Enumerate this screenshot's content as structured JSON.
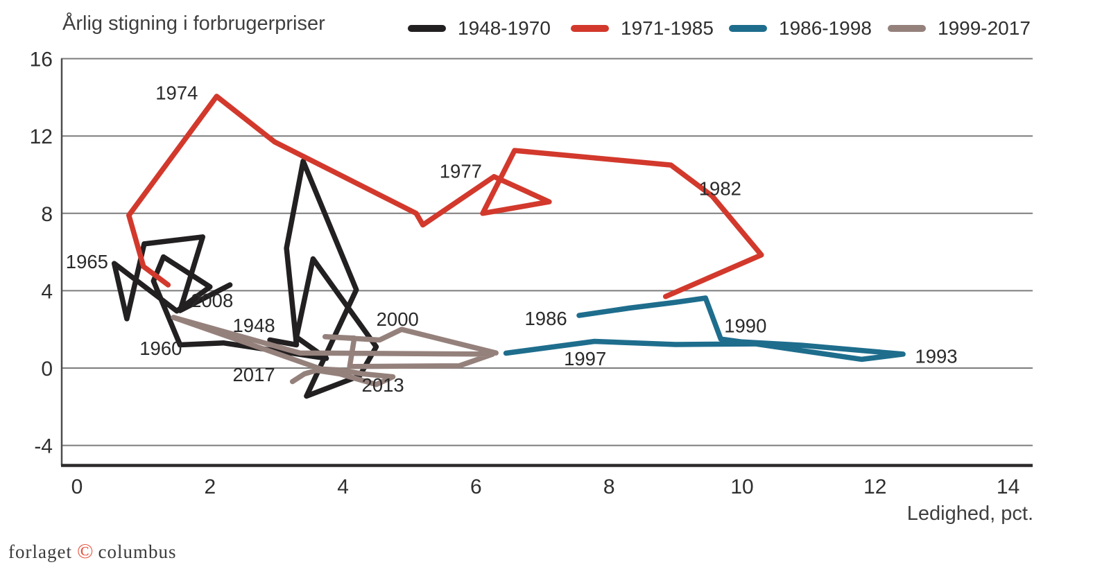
{
  "title": "Årlig stigning i forbrugerpriser",
  "footer": {
    "publisher": "forlaget",
    "copyright": "©",
    "name": "columbus"
  },
  "colors": {
    "grid": "#7c7c7c",
    "axis": "#2d2a2b",
    "left_axis": "#4c4c4c",
    "tick_text": "#2f2f2f",
    "annotation_text": "#2a2a2a",
    "series_black": "#232021",
    "series_red": "#d2392c",
    "series_teal": "#1e6d8d",
    "series_gray": "#95817c",
    "footer_accent": "#e8503c"
  },
  "chart_data": {
    "type": "line",
    "title": "Årlig stigning i forbrugerpriser",
    "xlabel": "Ledighed, pct.",
    "ylabel": "",
    "xlim": [
      0,
      15.3
    ],
    "ylim": [
      -5,
      16
    ],
    "grid": "horizontal",
    "legend_position": "top",
    "x_ticks": [
      0,
      2,
      4,
      6,
      8,
      10,
      12,
      14
    ],
    "y_ticks": [
      16,
      12,
      8,
      4,
      0,
      -4
    ],
    "series": [
      {
        "name": "1948-1970",
        "color": "#232021",
        "points": [
          [
            2.9,
            1.45
          ],
          [
            3.3,
            1.2
          ],
          [
            3.15,
            6.2
          ],
          [
            3.4,
            10.7
          ],
          [
            4.2,
            4.05
          ],
          [
            3.45,
            -1.45
          ],
          [
            4.25,
            -0.4
          ],
          [
            4.5,
            1.1
          ],
          [
            3.55,
            5.65
          ],
          [
            3.3,
            1.6
          ],
          [
            3.75,
            0.5
          ],
          [
            2.2,
            1.3
          ],
          [
            1.55,
            1.2
          ],
          [
            1.15,
            4.5
          ],
          [
            1.3,
            5.75
          ],
          [
            2.0,
            4.2
          ],
          [
            1.5,
            2.95
          ],
          [
            0.56,
            5.41
          ],
          [
            0.75,
            2.55
          ],
          [
            1.01,
            6.42
          ],
          [
            1.89,
            6.78
          ],
          [
            1.55,
            2.97
          ],
          [
            2.3,
            4.3
          ]
        ]
      },
      {
        "name": "1971-1985",
        "color": "#d2392c",
        "points": [
          [
            1.37,
            4.3
          ],
          [
            1.0,
            5.25
          ],
          [
            0.78,
            7.9
          ],
          [
            2.1,
            14.05
          ],
          [
            2.97,
            11.7
          ],
          [
            5.1,
            8.0
          ],
          [
            5.2,
            7.4
          ],
          [
            6.27,
            9.9
          ],
          [
            7.1,
            8.6
          ],
          [
            6.1,
            8.0
          ],
          [
            6.58,
            11.25
          ],
          [
            8.93,
            10.5
          ],
          [
            9.55,
            8.9
          ],
          [
            10.29,
            5.85
          ],
          [
            8.85,
            3.7
          ]
        ]
      },
      {
        "name": "1986-1998",
        "color": "#1e6d8d",
        "points": [
          [
            7.55,
            2.72
          ],
          [
            8.3,
            3.1
          ],
          [
            9.0,
            3.4
          ],
          [
            9.45,
            3.62
          ],
          [
            9.68,
            1.5
          ],
          [
            10.0,
            1.35
          ],
          [
            10.9,
            1.18
          ],
          [
            12.42,
            0.72
          ],
          [
            11.8,
            0.45
          ],
          [
            10.2,
            1.25
          ],
          [
            9.0,
            1.22
          ],
          [
            7.78,
            1.38
          ],
          [
            6.45,
            0.77
          ]
        ]
      },
      {
        "name": "1999-2017",
        "color": "#95817c",
        "points": [
          [
            6.3,
            0.78
          ],
          [
            4.88,
            2.0
          ],
          [
            4.55,
            1.45
          ],
          [
            3.73,
            1.62
          ],
          [
            4.17,
            1.55
          ],
          [
            4.1,
            0.08
          ],
          [
            5.75,
            0.12
          ],
          [
            6.25,
            0.72
          ],
          [
            3.35,
            0.78
          ],
          [
            1.45,
            2.62
          ],
          [
            3.67,
            -0.05
          ],
          [
            3.95,
            -0.1
          ],
          [
            4.3,
            -0.3
          ],
          [
            4.75,
            -0.45
          ],
          [
            4.5,
            -0.85
          ],
          [
            3.95,
            -0.3
          ],
          [
            3.6,
            -0.12
          ],
          [
            3.42,
            -0.3
          ],
          [
            3.24,
            -0.7
          ]
        ]
      }
    ],
    "annotations": [
      {
        "text": "1965",
        "x": 0.15,
        "y": 5.52
      },
      {
        "text": "1948",
        "x": 2.66,
        "y": 2.22
      },
      {
        "text": "1960",
        "x": 1.26,
        "y": 1.04
      },
      {
        "text": "1974",
        "x": 1.5,
        "y": 14.25
      },
      {
        "text": "1977",
        "x": 5.77,
        "y": 10.2
      },
      {
        "text": "1982",
        "x": 9.67,
        "y": 9.3
      },
      {
        "text": "1986",
        "x": 7.05,
        "y": 2.58
      },
      {
        "text": "1990",
        "x": 10.05,
        "y": 2.2
      },
      {
        "text": "1993",
        "x": 12.92,
        "y": 0.62
      },
      {
        "text": "1997",
        "x": 7.64,
        "y": 0.5
      },
      {
        "text": "2000",
        "x": 4.82,
        "y": 2.54
      },
      {
        "text": "2008",
        "x": 2.03,
        "y": 3.51
      },
      {
        "text": "2013",
        "x": 4.6,
        "y": -0.86
      },
      {
        "text": "2017",
        "x": 2.66,
        "y": -0.32
      }
    ]
  },
  "axes": {
    "x": {
      "tick_labels": [
        "0",
        "2",
        "4",
        "6",
        "8",
        "10",
        "12",
        "14"
      ],
      "values": [
        0,
        2,
        4,
        6,
        8,
        10,
        12,
        14
      ],
      "label": "Ledighed, pct."
    },
    "y": {
      "tick_labels": [
        "16",
        "12",
        "8",
        "4",
        "0",
        "-4"
      ],
      "values": [
        16,
        12,
        8,
        4,
        0,
        -4
      ]
    }
  }
}
